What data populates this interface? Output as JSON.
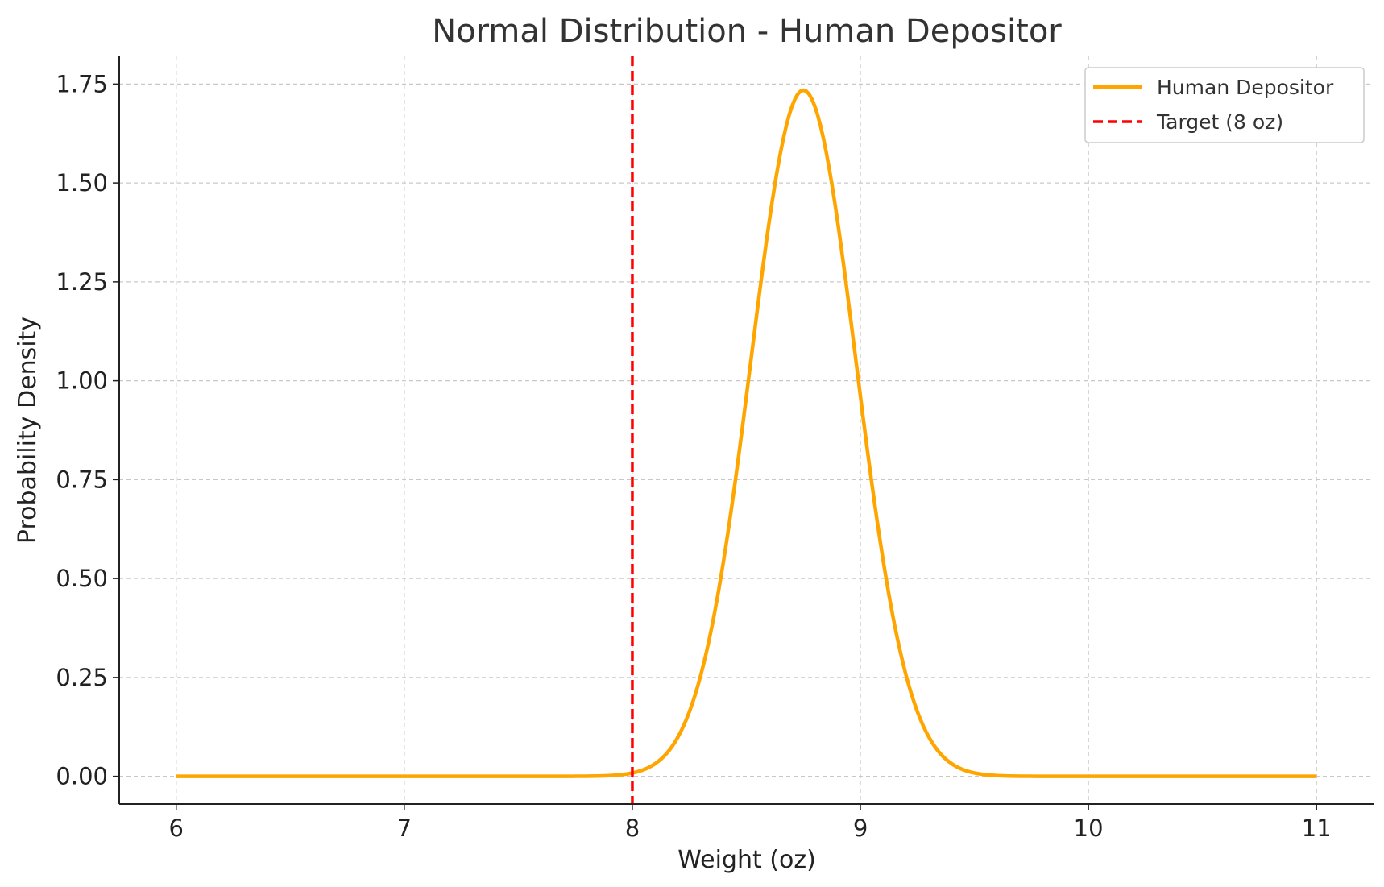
{
  "chart_data": {
    "type": "line",
    "title": "Normal Distribution - Human Depositor",
    "xlabel": "Weight (oz)",
    "ylabel": "Probability Density",
    "xlim": [
      5.75,
      11.25
    ],
    "ylim": [
      -0.07,
      1.82
    ],
    "xticks": [
      6,
      7,
      8,
      9,
      10,
      11
    ],
    "xtick_labels": [
      "6",
      "7",
      "8",
      "9",
      "10",
      "11"
    ],
    "yticks": [
      0,
      0.25,
      0.5,
      0.75,
      1.0,
      1.25,
      1.5,
      1.75
    ],
    "ytick_labels": [
      "0.00",
      "0.25",
      "0.50",
      "0.75",
      "1.00",
      "1.25",
      "1.50",
      "1.75"
    ],
    "grid": true,
    "legend_position": "top-right",
    "series": [
      {
        "name": "Human Depositor",
        "kind": "normal-pdf",
        "mean": 8.75,
        "std": 0.23,
        "x_range": [
          6,
          11
        ],
        "color": "#FFA500",
        "style": "solid"
      },
      {
        "name": "Target (8 oz)",
        "kind": "vertical-line",
        "x": 8,
        "color": "#FF0000",
        "style": "dashed"
      }
    ]
  }
}
